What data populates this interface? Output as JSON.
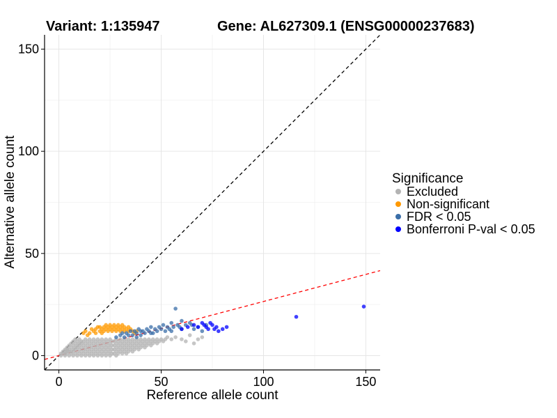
{
  "chart_data": {
    "type": "scatter",
    "title_left": "Variant: 1:135947",
    "title_right": "Gene: AL627309.1 (ENSG00000237683)",
    "xlabel": "Reference allele count",
    "ylabel": "Alternative allele count",
    "xlim": [
      -7,
      157
    ],
    "ylim": [
      -7,
      157
    ],
    "xticks": [
      0,
      50,
      100,
      150
    ],
    "yticks": [
      0,
      50,
      100,
      150
    ],
    "grid": true,
    "legend": {
      "title": "Significance",
      "placement": "right",
      "entries": [
        {
          "label": "Excluded",
          "color": "#b3b3b3"
        },
        {
          "label": "Non-significant",
          "color": "#ff9900"
        },
        {
          "label": "FDR < 0.05",
          "color": "#3a6ea8"
        },
        {
          "label": "Bonferroni P-val < 0.05",
          "color": "#0000ff"
        }
      ]
    },
    "reference_lines": [
      {
        "name": "identity",
        "slope": 1,
        "intercept": 0,
        "color": "#000000",
        "dash": "dashed"
      },
      {
        "name": "fit",
        "slope": 0.265,
        "intercept": 0,
        "color": "#ff0000",
        "dash": "dashed"
      }
    ],
    "series": [
      {
        "name": "Excluded",
        "color": "#b3b3b3",
        "points": [
          [
            1,
            0
          ],
          [
            1,
            1
          ],
          [
            2,
            1
          ],
          [
            2,
            2
          ],
          [
            3,
            0
          ],
          [
            3,
            1
          ],
          [
            3,
            2
          ],
          [
            3,
            3
          ],
          [
            4,
            1
          ],
          [
            4,
            2
          ],
          [
            4,
            3
          ],
          [
            4,
            4
          ],
          [
            5,
            0
          ],
          [
            5,
            2
          ],
          [
            5,
            3
          ],
          [
            5,
            5
          ],
          [
            6,
            1
          ],
          [
            6,
            2
          ],
          [
            6,
            4
          ],
          [
            6,
            6
          ],
          [
            7,
            0
          ],
          [
            7,
            2
          ],
          [
            7,
            3
          ],
          [
            7,
            5
          ],
          [
            7,
            7
          ],
          [
            8,
            1
          ],
          [
            8,
            3
          ],
          [
            8,
            4
          ],
          [
            8,
            6
          ],
          [
            8,
            8
          ],
          [
            9,
            0
          ],
          [
            9,
            2
          ],
          [
            9,
            4
          ],
          [
            9,
            5
          ],
          [
            9,
            7
          ],
          [
            10,
            1
          ],
          [
            10,
            3
          ],
          [
            10,
            5
          ],
          [
            10,
            6
          ],
          [
            10,
            8
          ],
          [
            11,
            0
          ],
          [
            11,
            2
          ],
          [
            11,
            4
          ],
          [
            11,
            6
          ],
          [
            11,
            7
          ],
          [
            12,
            1
          ],
          [
            12,
            3
          ],
          [
            12,
            5
          ],
          [
            12,
            7
          ],
          [
            13,
            0
          ],
          [
            13,
            2
          ],
          [
            13,
            4
          ],
          [
            13,
            6
          ],
          [
            13,
            8
          ],
          [
            14,
            1
          ],
          [
            14,
            3
          ],
          [
            14,
            5
          ],
          [
            14,
            7
          ],
          [
            15,
            0
          ],
          [
            15,
            2
          ],
          [
            15,
            4
          ],
          [
            15,
            6
          ],
          [
            15,
            8
          ],
          [
            16,
            1
          ],
          [
            16,
            3
          ],
          [
            16,
            5
          ],
          [
            16,
            7
          ],
          [
            17,
            0
          ],
          [
            17,
            2
          ],
          [
            17,
            4
          ],
          [
            17,
            6
          ],
          [
            17,
            8
          ],
          [
            18,
            1
          ],
          [
            18,
            3
          ],
          [
            18,
            5
          ],
          [
            18,
            7
          ],
          [
            19,
            0
          ],
          [
            19,
            2
          ],
          [
            19,
            4
          ],
          [
            19,
            6
          ],
          [
            19,
            8
          ],
          [
            20,
            1
          ],
          [
            20,
            3
          ],
          [
            20,
            5
          ],
          [
            20,
            7
          ],
          [
            21,
            0
          ],
          [
            21,
            2
          ],
          [
            21,
            4
          ],
          [
            21,
            6
          ],
          [
            21,
            8
          ],
          [
            22,
            1
          ],
          [
            22,
            3
          ],
          [
            22,
            5
          ],
          [
            22,
            7
          ],
          [
            23,
            0
          ],
          [
            23,
            2
          ],
          [
            23,
            4
          ],
          [
            23,
            6
          ],
          [
            23,
            8
          ],
          [
            24,
            1
          ],
          [
            24,
            3
          ],
          [
            24,
            5
          ],
          [
            24,
            7
          ],
          [
            25,
            0
          ],
          [
            25,
            2
          ],
          [
            25,
            4
          ],
          [
            25,
            6
          ],
          [
            25,
            8
          ],
          [
            26,
            1
          ],
          [
            26,
            3
          ],
          [
            26,
            5
          ],
          [
            26,
            7
          ],
          [
            27,
            1
          ],
          [
            27,
            3
          ],
          [
            27,
            5
          ],
          [
            27,
            7
          ],
          [
            28,
            0
          ],
          [
            28,
            2
          ],
          [
            28,
            4
          ],
          [
            28,
            6
          ],
          [
            28,
            8
          ],
          [
            29,
            1
          ],
          [
            29,
            3
          ],
          [
            29,
            5
          ],
          [
            29,
            7
          ],
          [
            30,
            2
          ],
          [
            30,
            4
          ],
          [
            30,
            6
          ],
          [
            30,
            8
          ],
          [
            31,
            1
          ],
          [
            31,
            3
          ],
          [
            31,
            5
          ],
          [
            31,
            7
          ],
          [
            32,
            2
          ],
          [
            32,
            4
          ],
          [
            32,
            6
          ],
          [
            32,
            8
          ],
          [
            33,
            1
          ],
          [
            33,
            3
          ],
          [
            33,
            5
          ],
          [
            33,
            7
          ],
          [
            34,
            2
          ],
          [
            34,
            4
          ],
          [
            34,
            6
          ],
          [
            34,
            8
          ],
          [
            35,
            3
          ],
          [
            35,
            5
          ],
          [
            35,
            7
          ],
          [
            36,
            2
          ],
          [
            36,
            4
          ],
          [
            36,
            6
          ],
          [
            36,
            8
          ],
          [
            37,
            3
          ],
          [
            37,
            5
          ],
          [
            37,
            7
          ],
          [
            38,
            4
          ],
          [
            38,
            6
          ],
          [
            38,
            8
          ],
          [
            39,
            3
          ],
          [
            39,
            5
          ],
          [
            39,
            7
          ],
          [
            40,
            4
          ],
          [
            40,
            6
          ],
          [
            40,
            8
          ],
          [
            41,
            5
          ],
          [
            41,
            7
          ],
          [
            42,
            4
          ],
          [
            42,
            6
          ],
          [
            42,
            8
          ],
          [
            43,
            5
          ],
          [
            43,
            7
          ],
          [
            44,
            6
          ],
          [
            44,
            8
          ],
          [
            45,
            5
          ],
          [
            45,
            7
          ],
          [
            46,
            6
          ],
          [
            46,
            8
          ],
          [
            47,
            7
          ],
          [
            48,
            6
          ],
          [
            48,
            8
          ],
          [
            49,
            7
          ],
          [
            50,
            8
          ],
          [
            51,
            7
          ],
          [
            52,
            8
          ],
          [
            53,
            9
          ],
          [
            55,
            8
          ],
          [
            57,
            9
          ],
          [
            60,
            8
          ],
          [
            62,
            7
          ],
          [
            64,
            10
          ],
          [
            66,
            6
          ],
          [
            68,
            8
          ],
          [
            70,
            9
          ]
        ]
      },
      {
        "name": "Non-significant",
        "color": "#ff9900",
        "points": [
          [
            12,
            11
          ],
          [
            13,
            12
          ],
          [
            14,
            10
          ],
          [
            15,
            11
          ],
          [
            16,
            13
          ],
          [
            17,
            12
          ],
          [
            18,
            13
          ],
          [
            18,
            11
          ],
          [
            19,
            14
          ],
          [
            20,
            12
          ],
          [
            20,
            14
          ],
          [
            21,
            11
          ],
          [
            21,
            13
          ],
          [
            22,
            12
          ],
          [
            22,
            14
          ],
          [
            23,
            13
          ],
          [
            23,
            15
          ],
          [
            24,
            12
          ],
          [
            24,
            14
          ],
          [
            25,
            13
          ],
          [
            25,
            15
          ],
          [
            26,
            12
          ],
          [
            26,
            14
          ],
          [
            27,
            13
          ],
          [
            27,
            15
          ],
          [
            28,
            12
          ],
          [
            28,
            14
          ],
          [
            29,
            13
          ],
          [
            29,
            15
          ],
          [
            30,
            14
          ],
          [
            30,
            12
          ],
          [
            31,
            13
          ],
          [
            31,
            15
          ],
          [
            32,
            14
          ],
          [
            32,
            12
          ],
          [
            33,
            13
          ],
          [
            34,
            14
          ],
          [
            34,
            12
          ],
          [
            35,
            13
          ],
          [
            36,
            12
          ],
          [
            37,
            11
          ],
          [
            38,
            12
          ]
        ]
      },
      {
        "name": "FDR < 0.05",
        "color": "#3a6ea8",
        "points": [
          [
            28,
            9
          ],
          [
            30,
            10
          ],
          [
            31,
            11
          ],
          [
            32,
            9
          ],
          [
            33,
            11
          ],
          [
            34,
            10
          ],
          [
            35,
            12
          ],
          [
            36,
            10
          ],
          [
            37,
            12
          ],
          [
            38,
            11
          ],
          [
            39,
            13
          ],
          [
            40,
            10
          ],
          [
            41,
            12
          ],
          [
            42,
            11
          ],
          [
            43,
            13
          ],
          [
            44,
            12
          ],
          [
            45,
            14
          ],
          [
            46,
            11
          ],
          [
            47,
            13
          ],
          [
            48,
            12
          ],
          [
            49,
            14
          ],
          [
            50,
            13
          ],
          [
            51,
            15
          ],
          [
            52,
            12
          ],
          [
            53,
            14
          ],
          [
            54,
            13
          ],
          [
            55,
            16
          ],
          [
            56,
            14
          ],
          [
            57,
            23
          ],
          [
            58,
            15
          ],
          [
            59,
            14
          ],
          [
            60,
            17
          ],
          [
            62,
            15
          ],
          [
            64,
            16
          ],
          [
            66,
            13
          ],
          [
            68,
            14
          ],
          [
            70,
            12
          ],
          [
            72,
            15
          ],
          [
            55,
            12
          ],
          [
            60,
            13
          ],
          [
            65,
            15
          ],
          [
            45,
            11
          ],
          [
            40,
            12
          ],
          [
            38,
            9
          ]
        ]
      },
      {
        "name": "Bonferroni P-val < 0.05",
        "color": "#0000ff",
        "points": [
          [
            60,
            13
          ],
          [
            63,
            14
          ],
          [
            66,
            15
          ],
          [
            68,
            14
          ],
          [
            70,
            16
          ],
          [
            71,
            15
          ],
          [
            72,
            14
          ],
          [
            73,
            13
          ],
          [
            74,
            16
          ],
          [
            75,
            15
          ],
          [
            76,
            13
          ],
          [
            77,
            14
          ],
          [
            78,
            12
          ],
          [
            80,
            13
          ],
          [
            82,
            14
          ],
          [
            116,
            19
          ],
          [
            149,
            24
          ]
        ]
      }
    ]
  }
}
